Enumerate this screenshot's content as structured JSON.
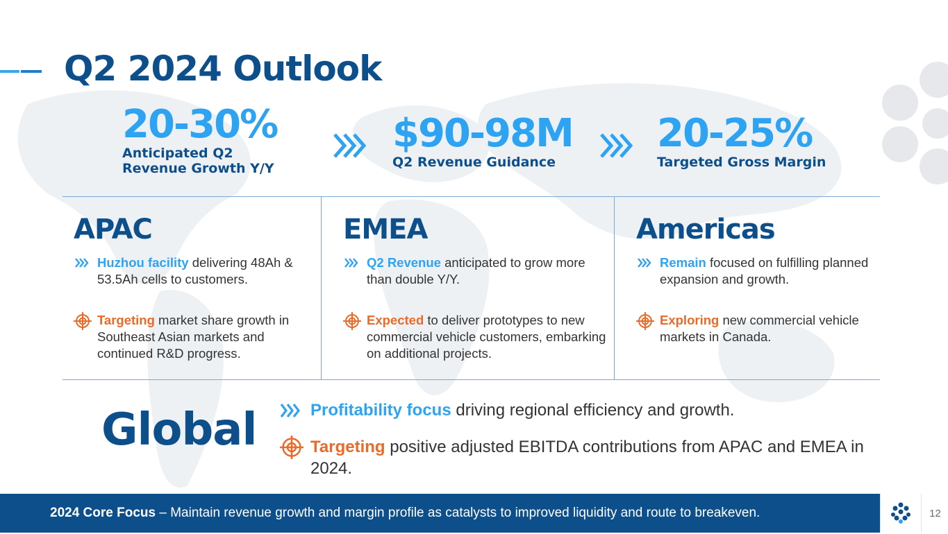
{
  "slide": {
    "title": "Q2 2024 Outlook",
    "page_number": "12"
  },
  "kpis": [
    {
      "value": "20-30%",
      "label": "Anticipated Q2 Revenue Growth Y/Y"
    },
    {
      "value": "$90-98M",
      "label": "Q2 Revenue Guidance"
    },
    {
      "value": "20-25%",
      "label": "Targeted Gross Margin"
    }
  ],
  "regions": {
    "apac": {
      "name": "APAC",
      "b1_highlight": "Huzhou facility",
      "b1_text": " delivering 48Ah & 53.5Ah cells to customers.",
      "b2_highlight": "Targeting",
      "b2_text": " market share growth in Southeast Asian markets and continued R&D progress."
    },
    "emea": {
      "name": "EMEA",
      "b1_highlight": "Q2 Revenue",
      "b1_text": " anticipated to grow more than double Y/Y.",
      "b2_highlight": "Expected",
      "b2_text": " to deliver prototypes to new commercial vehicle customers, embarking on additional projects."
    },
    "americas": {
      "name": "Americas",
      "b1_highlight": "Remain",
      "b1_text": " focused on fulfilling planned expansion and growth.",
      "b2_highlight": "Exploring",
      "b2_text": " new commercial vehicle markets in Canada."
    }
  },
  "global": {
    "title": "Global",
    "b1_highlight": "Profitability focus",
    "b1_text": " driving regional efficiency and growth.",
    "b2_highlight": "Targeting",
    "b2_text": " positive adjusted EBITDA contributions from APAC and EMEA in 2024."
  },
  "footer": {
    "bold": "2024 Core Focus",
    "text": " – Maintain revenue growth and margin profile as catalysts to improved liquidity and route to breakeven."
  },
  "icons": {
    "chevron": "triple-chevron-icon",
    "target": "target-icon",
    "logo": "company-logo-icon"
  },
  "colors": {
    "navy": "#0d4f8b",
    "blue": "#2ea3f2",
    "orange": "#ea6a28"
  }
}
